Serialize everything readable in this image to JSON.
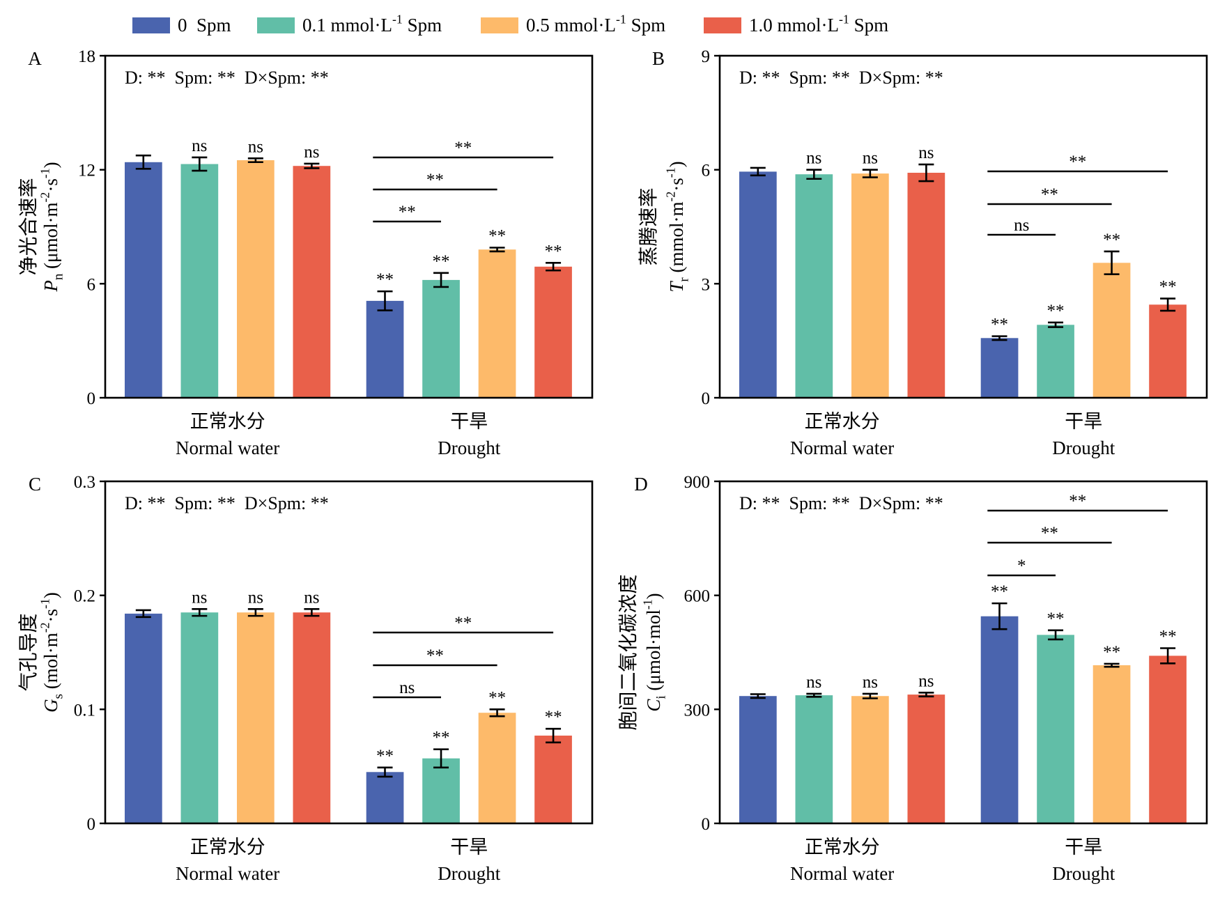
{
  "legend": {
    "items": [
      {
        "parts": [
          {
            "t": "0  Spm"
          }
        ],
        "color": "#4a64ae"
      },
      {
        "parts": [
          {
            "t": "0.1 mmol·L"
          },
          {
            "sup": "-1"
          },
          {
            "t": " Spm"
          }
        ],
        "color": "#61bea7"
      },
      {
        "parts": [
          {
            "t": "0.5 mmol·L"
          },
          {
            "sup": "-1"
          },
          {
            "t": " Spm"
          }
        ],
        "color": "#fdba6a"
      },
      {
        "parts": [
          {
            "t": "1.0 mmol·L"
          },
          {
            "sup": "-1"
          },
          {
            "t": " Spm"
          }
        ],
        "color": "#e9604a"
      }
    ]
  },
  "chart_data": [
    {
      "type": "bar",
      "panel_label": "A",
      "anova": "D: **  Spm: **  D×Spm: **",
      "ylabel_cn": "净光合速率",
      "ylabel_parts": [
        {
          "i": "P"
        },
        {
          "sub": "n"
        },
        {
          "t": " (μmol·m"
        },
        {
          "sup": "-2"
        },
        {
          "t": "·s"
        },
        {
          "sup": "-1"
        },
        {
          "t": ")"
        }
      ],
      "ylim": [
        0,
        18
      ],
      "yticks": [
        "0",
        "6",
        "12",
        "18"
      ],
      "categories": [
        {
          "cn": "正常水分",
          "en": "Normal water"
        },
        {
          "cn": "干旱",
          "en": "Drought"
        }
      ],
      "series": [
        {
          "values": [
            12.4,
            5.1
          ],
          "errors": [
            0.35,
            0.5
          ],
          "sig": [
            "",
            "**"
          ]
        },
        {
          "values": [
            12.3,
            6.2
          ],
          "errors": [
            0.35,
            0.37
          ],
          "sig": [
            "ns",
            "**"
          ]
        },
        {
          "values": [
            12.5,
            7.8
          ],
          "errors": [
            0.1,
            0.1
          ],
          "sig": [
            "ns",
            "**"
          ]
        },
        {
          "values": [
            12.2,
            6.9
          ],
          "errors": [
            0.12,
            0.2
          ],
          "sig": [
            "ns",
            "**"
          ]
        }
      ],
      "comparisons": [
        {
          "category": 1,
          "from": 0,
          "to": 1,
          "label": "**"
        },
        {
          "category": 1,
          "from": 0,
          "to": 2,
          "label": "**"
        },
        {
          "category": 1,
          "from": 0,
          "to": 3,
          "label": "**"
        }
      ]
    },
    {
      "type": "bar",
      "panel_label": "B",
      "anova": "D: **  Spm: **  D×Spm: **",
      "ylabel_cn": "蒸腾速率",
      "ylabel_parts": [
        {
          "i": "T"
        },
        {
          "sub": "r"
        },
        {
          "t": " (mmol·m"
        },
        {
          "sup": "-2"
        },
        {
          "t": "·s"
        },
        {
          "sup": "-1"
        },
        {
          "t": ")"
        }
      ],
      "ylim": [
        0,
        9
      ],
      "yticks": [
        "0",
        "3",
        "6",
        "9"
      ],
      "categories": [
        {
          "cn": "正常水分",
          "en": "Normal water"
        },
        {
          "cn": "干旱",
          "en": "Drought"
        }
      ],
      "series": [
        {
          "values": [
            5.95,
            1.57
          ],
          "errors": [
            0.1,
            0.05
          ],
          "sig": [
            "",
            "**"
          ]
        },
        {
          "values": [
            5.88,
            1.92
          ],
          "errors": [
            0.12,
            0.06
          ],
          "sig": [
            "ns",
            "**"
          ]
        },
        {
          "values": [
            5.9,
            3.55
          ],
          "errors": [
            0.1,
            0.3
          ],
          "sig": [
            "ns",
            "**"
          ]
        },
        {
          "values": [
            5.92,
            2.45
          ],
          "errors": [
            0.22,
            0.16
          ],
          "sig": [
            "ns",
            "**"
          ]
        }
      ],
      "comparisons": [
        {
          "category": 1,
          "from": 0,
          "to": 1,
          "label": "ns"
        },
        {
          "category": 1,
          "from": 0,
          "to": 2,
          "label": "**"
        },
        {
          "category": 1,
          "from": 0,
          "to": 3,
          "label": "**"
        }
      ]
    },
    {
      "type": "bar",
      "panel_label": "C",
      "anova": "D: **  Spm: **  D×Spm: **",
      "ylabel_cn": "气孔导度",
      "ylabel_parts": [
        {
          "i": "G"
        },
        {
          "sub": "s"
        },
        {
          "t": " (mol·m"
        },
        {
          "sup": "-2"
        },
        {
          "t": "·s"
        },
        {
          "sup": "-1"
        },
        {
          "t": ")"
        }
      ],
      "ylim": [
        0,
        0.3
      ],
      "yticks": [
        "0",
        "0.1",
        "0.2",
        "0.3"
      ],
      "categories": [
        {
          "cn": "正常水分",
          "en": "Normal water"
        },
        {
          "cn": "干旱",
          "en": "Drought"
        }
      ],
      "series": [
        {
          "values": [
            0.184,
            0.045
          ],
          "errors": [
            0.003,
            0.004
          ],
          "sig": [
            "",
            "**"
          ]
        },
        {
          "values": [
            0.185,
            0.057
          ],
          "errors": [
            0.003,
            0.008
          ],
          "sig": [
            "ns",
            "**"
          ]
        },
        {
          "values": [
            0.185,
            0.097
          ],
          "errors": [
            0.003,
            0.003
          ],
          "sig": [
            "ns",
            "**"
          ]
        },
        {
          "values": [
            0.185,
            0.077
          ],
          "errors": [
            0.003,
            0.006
          ],
          "sig": [
            "ns",
            "**"
          ]
        }
      ],
      "comparisons": [
        {
          "category": 1,
          "from": 0,
          "to": 1,
          "label": "ns"
        },
        {
          "category": 1,
          "from": 0,
          "to": 2,
          "label": "**"
        },
        {
          "category": 1,
          "from": 0,
          "to": 3,
          "label": "**"
        }
      ]
    },
    {
      "type": "bar",
      "panel_label": "D",
      "anova": "D: **  Spm: **  D×Spm: **",
      "ylabel_cn": "胞间二氧化碳浓度",
      "ylabel_parts": [
        {
          "i": "C"
        },
        {
          "sub": "i"
        },
        {
          "t": " (μmol·mol"
        },
        {
          "sup": "-1"
        },
        {
          "t": ")"
        }
      ],
      "ylim": [
        0,
        900
      ],
      "yticks": [
        "0",
        "300",
        "600",
        "900"
      ],
      "categories": [
        {
          "cn": "正常水分",
          "en": "Normal water"
        },
        {
          "cn": "干旱",
          "en": "Drought"
        }
      ],
      "series": [
        {
          "values": [
            335,
            545
          ],
          "errors": [
            5,
            34
          ],
          "sig": [
            "",
            "**"
          ]
        },
        {
          "values": [
            337,
            496
          ],
          "errors": [
            4,
            12
          ],
          "sig": [
            "ns",
            "**"
          ]
        },
        {
          "values": [
            335,
            416
          ],
          "errors": [
            6,
            4
          ],
          "sig": [
            "ns",
            "**"
          ]
        },
        {
          "values": [
            339,
            441
          ],
          "errors": [
            5,
            20
          ],
          "sig": [
            "ns",
            "**"
          ]
        }
      ],
      "comparisons": [
        {
          "category": 1,
          "from": 0,
          "to": 1,
          "label": "*"
        },
        {
          "category": 1,
          "from": 0,
          "to": 2,
          "label": "**"
        },
        {
          "category": 1,
          "from": 0,
          "to": 3,
          "label": "**"
        }
      ]
    }
  ]
}
